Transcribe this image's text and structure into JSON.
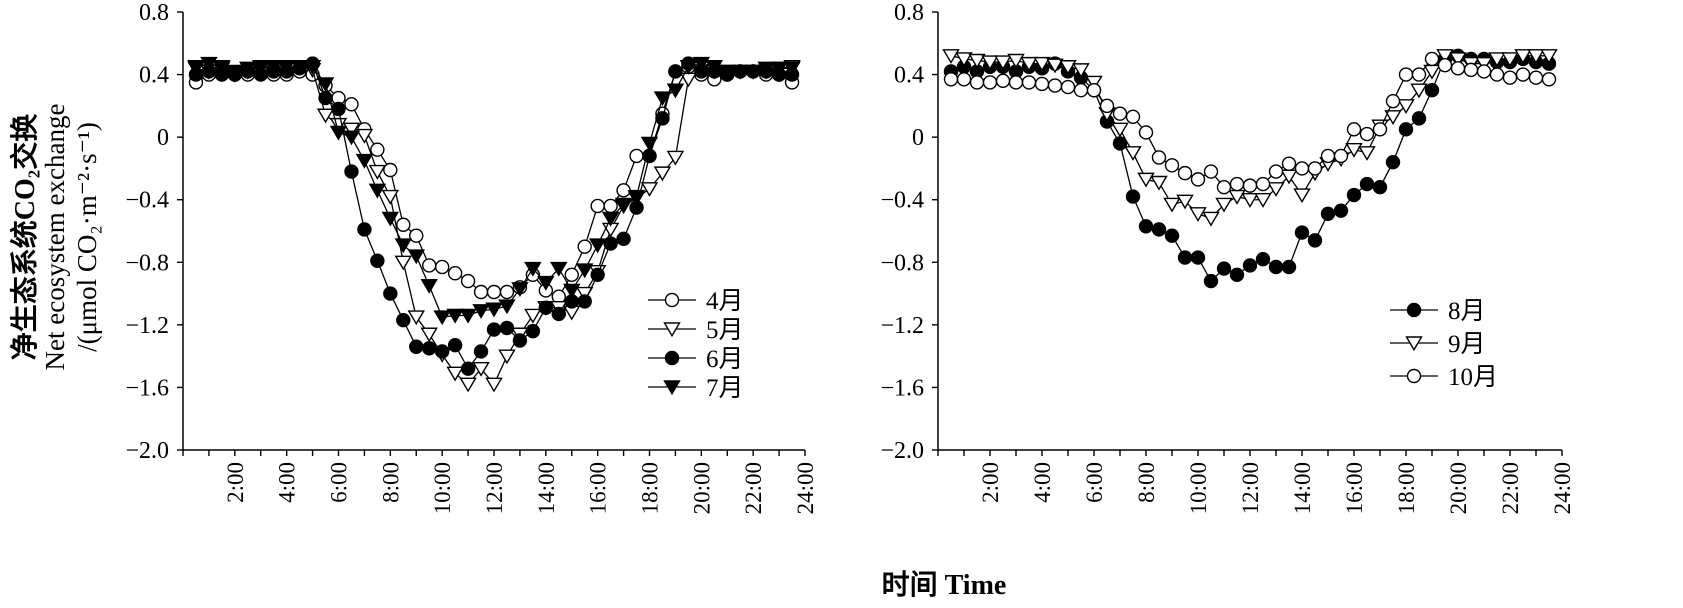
{
  "ylabel_cn": "净生态系统CO₂交换",
  "ylabel_en": "Net ecosystem exchange",
  "ylabel_unit": "/(μmol CO₂·m⁻²·s⁻¹)",
  "xlabel": "时间 Time",
  "marker_colors": {
    "line": "#000000",
    "open": "#ffffff",
    "filled": "#000000"
  },
  "chart_data": [
    {
      "type": "line",
      "title": "",
      "xlabel": "时间 Time",
      "ylabel": "净生态系统CO₂交换 Net ecosystem exchange /(μmol CO₂·m⁻²·s⁻¹)",
      "ylim": [
        -2.0,
        0.8
      ],
      "yticks": [
        "0.8",
        "0.4",
        "0",
        "−0.4",
        "−0.8",
        "−1.2",
        "−1.6",
        "−2.0"
      ],
      "xlim": [
        0,
        24
      ],
      "xticks": [
        "2:00",
        "4:00",
        "6:00",
        "8:00",
        "10:00",
        "12:00",
        "14:00",
        "16:00",
        "18:00",
        "20:00",
        "22:00",
        "24:00"
      ],
      "grid": false,
      "legend_position": "lower-right",
      "x": [
        0.5,
        1.0,
        1.5,
        2.0,
        2.5,
        3.0,
        3.5,
        4.0,
        4.5,
        5.0,
        5.5,
        6.0,
        6.5,
        7.0,
        7.5,
        8.0,
        8.5,
        9.0,
        9.5,
        10.0,
        10.5,
        11.0,
        11.5,
        12.0,
        12.5,
        13.0,
        13.5,
        14.0,
        14.5,
        15.0,
        15.5,
        16.0,
        16.5,
        17.0,
        17.5,
        18.0,
        18.5,
        19.0,
        19.5,
        20.0,
        20.5,
        21.0,
        21.5,
        22.0,
        22.5,
        23.0,
        23.5
      ],
      "series": [
        {
          "name": "4月",
          "marker": "circle-open",
          "values": [
            0.35,
            0.4,
            0.42,
            0.4,
            0.4,
            0.42,
            0.4,
            0.4,
            0.42,
            0.4,
            0.33,
            0.25,
            0.21,
            0.05,
            -0.08,
            -0.21,
            -0.56,
            -0.63,
            -0.82,
            -0.83,
            -0.87,
            -0.92,
            -0.99,
            -0.99,
            -0.99,
            -0.96,
            -0.88,
            -0.98,
            -1.02,
            -0.88,
            -0.7,
            -0.44,
            -0.44,
            -0.34,
            -0.12,
            -0.12,
            0.15,
            0.42,
            0.45,
            0.4,
            0.37,
            0.4,
            0.42,
            0.42,
            0.4,
            0.4,
            0.35
          ]
        },
        {
          "name": "5月",
          "marker": "triangle-down-open",
          "values": [
            0.44,
            0.42,
            0.44,
            0.4,
            0.42,
            0.45,
            0.43,
            0.45,
            0.45,
            0.43,
            0.14,
            0.08,
            0.05,
            0.01,
            -0.22,
            -0.38,
            -0.8,
            -1.15,
            -1.26,
            -1.39,
            -1.51,
            -1.58,
            -1.48,
            -1.58,
            -1.4,
            -1.26,
            -1.14,
            -1.09,
            -1.09,
            -1.12,
            -1.0,
            -0.86,
            -0.59,
            -0.44,
            -0.39,
            -0.33,
            -0.23,
            -0.13,
            0.37,
            0.44,
            0.42,
            0.42,
            0.42,
            0.42,
            0.42,
            0.44,
            0.45
          ]
        },
        {
          "name": "6月",
          "marker": "circle-filled",
          "values": [
            0.4,
            0.42,
            0.4,
            0.4,
            0.42,
            0.4,
            0.42,
            0.42,
            0.44,
            0.47,
            0.25,
            0.18,
            -0.22,
            -0.59,
            -0.79,
            -1.0,
            -1.17,
            -1.34,
            -1.35,
            -1.37,
            -1.33,
            -1.48,
            -1.37,
            -1.23,
            -1.22,
            -1.3,
            -1.24,
            -1.09,
            -1.13,
            -1.05,
            -1.05,
            -0.88,
            -0.68,
            -0.65,
            -0.45,
            -0.12,
            0.12,
            0.42,
            0.47,
            0.42,
            0.42,
            0.4,
            0.42,
            0.42,
            0.42,
            0.4,
            0.4
          ]
        },
        {
          "name": "7月",
          "marker": "triangle-down-filled",
          "values": [
            0.45,
            0.47,
            0.45,
            0.42,
            0.44,
            0.45,
            0.45,
            0.45,
            0.45,
            0.45,
            0.34,
            0.03,
            0.0,
            -0.15,
            -0.34,
            -0.52,
            -0.69,
            -0.76,
            -0.95,
            -1.15,
            -1.14,
            -1.14,
            -1.11,
            -1.1,
            -1.08,
            -0.97,
            -0.84,
            -0.93,
            -0.84,
            -0.98,
            -0.85,
            -0.69,
            -0.52,
            -0.43,
            -0.38,
            -0.04,
            0.25,
            0.3,
            0.45,
            0.47,
            0.45,
            0.42,
            0.42,
            0.42,
            0.44,
            0.44,
            0.44
          ]
        }
      ]
    },
    {
      "type": "line",
      "title": "",
      "xlabel": "时间 Time",
      "ylabel": "",
      "ylim": [
        -2.0,
        0.8
      ],
      "yticks": [
        "0.8",
        "0.4",
        "0",
        "−0.4",
        "−0.8",
        "−1.2",
        "−1.6",
        "−2.0"
      ],
      "xlim": [
        0,
        24
      ],
      "xticks": [
        "2:00",
        "4:00",
        "6:00",
        "8:00",
        "10:00",
        "12:00",
        "14:00",
        "16:00",
        "18:00",
        "20:00",
        "22:00",
        "24:00"
      ],
      "grid": false,
      "legend_position": "lower-right",
      "x": [
        0.5,
        1.0,
        1.5,
        2.0,
        2.5,
        3.0,
        3.5,
        4.0,
        4.5,
        5.0,
        5.5,
        6.0,
        6.5,
        7.0,
        7.5,
        8.0,
        8.5,
        9.0,
        9.5,
        10.0,
        10.5,
        11.0,
        11.5,
        12.0,
        12.5,
        13.0,
        13.5,
        14.0,
        14.5,
        15.0,
        15.5,
        16.0,
        16.5,
        17.0,
        17.5,
        18.0,
        18.5,
        19.0,
        19.5,
        20.0,
        20.5,
        21.0,
        21.5,
        22.0,
        22.5,
        23.0,
        23.5
      ],
      "series": [
        {
          "name": "8月",
          "marker": "circle-filled",
          "values": [
            0.42,
            0.45,
            0.42,
            0.45,
            0.45,
            0.42,
            0.45,
            0.44,
            0.47,
            0.42,
            0.38,
            0.3,
            0.1,
            -0.04,
            -0.38,
            -0.57,
            -0.59,
            -0.63,
            -0.77,
            -0.77,
            -0.92,
            -0.84,
            -0.88,
            -0.82,
            -0.78,
            -0.83,
            -0.83,
            -0.61,
            -0.66,
            -0.49,
            -0.47,
            -0.37,
            -0.3,
            -0.32,
            -0.16,
            0.05,
            0.12,
            0.3,
            0.5,
            0.52,
            0.5,
            0.5,
            0.48,
            0.48,
            0.5,
            0.48,
            0.47
          ]
        },
        {
          "name": "9月",
          "marker": "triangle-down-open",
          "values": [
            0.52,
            0.5,
            0.49,
            0.48,
            0.48,
            0.49,
            0.47,
            0.47,
            0.46,
            0.45,
            0.43,
            0.35,
            0.15,
            0.05,
            -0.1,
            -0.27,
            -0.29,
            -0.43,
            -0.41,
            -0.49,
            -0.52,
            -0.43,
            -0.38,
            -0.4,
            -0.4,
            -0.33,
            -0.25,
            -0.37,
            -0.23,
            -0.17,
            -0.14,
            -0.08,
            -0.1,
            0.07,
            0.13,
            0.2,
            0.3,
            0.42,
            0.52,
            0.5,
            0.47,
            0.47,
            0.5,
            0.5,
            0.52,
            0.52,
            0.52
          ]
        },
        {
          "name": "10月",
          "marker": "circle-open",
          "values": [
            0.37,
            0.37,
            0.35,
            0.35,
            0.36,
            0.35,
            0.35,
            0.34,
            0.33,
            0.32,
            0.3,
            0.3,
            0.2,
            0.15,
            0.13,
            0.03,
            -0.13,
            -0.18,
            -0.23,
            -0.27,
            -0.22,
            -0.32,
            -0.3,
            -0.31,
            -0.3,
            -0.22,
            -0.17,
            -0.2,
            -0.2,
            -0.12,
            -0.12,
            0.05,
            0.02,
            0.05,
            0.23,
            0.4,
            0.4,
            0.5,
            0.46,
            0.44,
            0.43,
            0.42,
            0.4,
            0.38,
            0.4,
            0.38,
            0.37
          ]
        }
      ]
    }
  ]
}
